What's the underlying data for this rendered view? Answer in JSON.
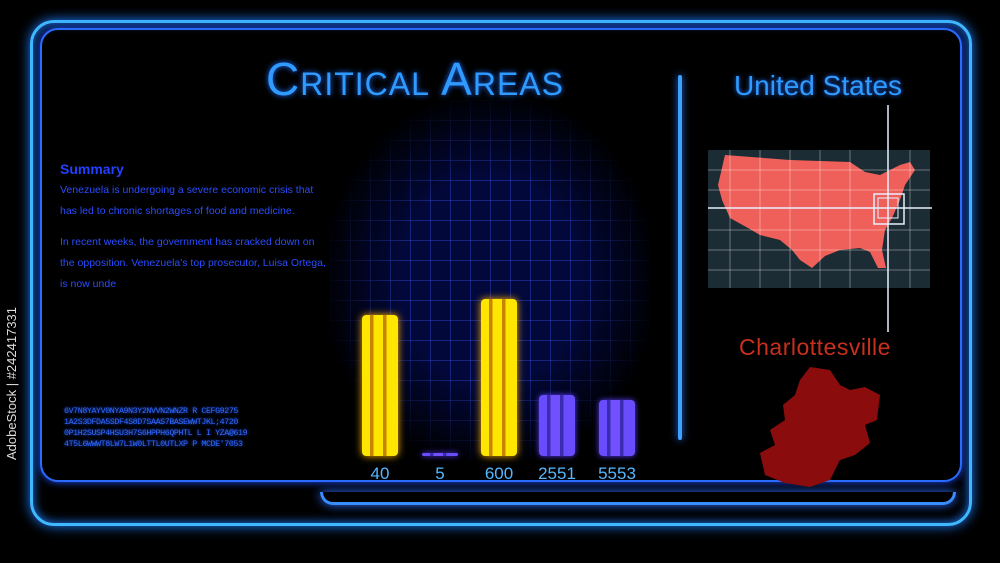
{
  "title": "Critical Areas",
  "summary": {
    "heading": "Summary",
    "paragraph1": "Venezuela is undergoing a severe economic crisis that has led to chronic shortages of food and medicine.",
    "paragraph2": "In recent weeks, the government has cracked down on the opposition. Venezuela's top prosecutor, Luisa Ortega, is now unde"
  },
  "code_lines": [
    "6V7N8YAYV0NYA9N3Y2NVVN2WNZR R CEFG9275",
    "1A2S3DFDA5SDF4S8D7SAAS7BASEWWTJKL;4720",
    "0P1H2SUSP4HSU3H7S6HPPH6QPHTL L I YZA@619",
    "4T5L6WWWT8LW7L1W0LTTL0UTLXP P MCDE'7053"
  ],
  "map": {
    "country": "United States",
    "city": "Charlottesville",
    "country_color": "#f0605a",
    "city_color": "#8a0c0c"
  },
  "chart_data": {
    "type": "bar",
    "categories": [
      "40",
      "5",
      "600",
      "2551",
      "5553"
    ],
    "values": [
      40,
      5,
      600,
      2551,
      5553
    ],
    "bar_fill_levels": [
      0.88,
      0.02,
      0.98,
      0.38,
      0.35
    ],
    "bar_colors": [
      "#ffe600",
      "#5a3cff",
      "#ffe600",
      "#6a4cff",
      "#6a4cff"
    ],
    "grid": true
  },
  "watermark": "AdobeStock | #242417331"
}
